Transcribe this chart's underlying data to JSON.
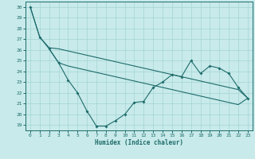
{
  "xlabel": "Humidex (Indice chaleur)",
  "xlim": [
    -0.5,
    23.5
  ],
  "ylim": [
    18.5,
    30.5
  ],
  "xticks": [
    0,
    1,
    2,
    3,
    4,
    5,
    6,
    7,
    8,
    9,
    10,
    11,
    12,
    13,
    14,
    15,
    16,
    17,
    18,
    19,
    20,
    21,
    22,
    23
  ],
  "yticks": [
    19,
    20,
    21,
    22,
    23,
    24,
    25,
    26,
    27,
    28,
    29,
    30
  ],
  "bg_color": "#c8eaea",
  "line_color": "#1e6b6b",
  "grid_color": "#a4d4d4",
  "line1_x": [
    0,
    1,
    2,
    3,
    4,
    5,
    6,
    7,
    8,
    9,
    10,
    11,
    12,
    13,
    14,
    15,
    16,
    17,
    18,
    19,
    20,
    21,
    22,
    23
  ],
  "line1_y": [
    30,
    27.2,
    26.1,
    24.8,
    23.2,
    22.0,
    20.3,
    18.9,
    18.9,
    19.4,
    20.0,
    21.1,
    21.2,
    22.5,
    23.0,
    23.7,
    23.5,
    25.0,
    23.8,
    24.5,
    24.3,
    23.8,
    22.5,
    21.5
  ],
  "line2_x": [
    0,
    1,
    2,
    3,
    4,
    5,
    6,
    7,
    8,
    9,
    10,
    11,
    12,
    13,
    14,
    15,
    16,
    17,
    18,
    19,
    20,
    21,
    22,
    23
  ],
  "line2_y": [
    30,
    27.2,
    26.2,
    26.1,
    25.9,
    25.7,
    25.5,
    25.3,
    25.1,
    24.9,
    24.7,
    24.5,
    24.3,
    24.1,
    23.9,
    23.7,
    23.5,
    23.3,
    23.1,
    22.9,
    22.7,
    22.5,
    22.3,
    21.5
  ],
  "line3_x": [
    2,
    3,
    4,
    5,
    6,
    7,
    8,
    9,
    10,
    11,
    12,
    13,
    14,
    15,
    16,
    17,
    18,
    19,
    20,
    21,
    22,
    23
  ],
  "line3_y": [
    26.1,
    24.8,
    24.5,
    24.3,
    24.1,
    23.9,
    23.7,
    23.5,
    23.3,
    23.1,
    22.9,
    22.7,
    22.5,
    22.3,
    22.1,
    21.9,
    21.7,
    21.5,
    21.3,
    21.1,
    20.9,
    21.5
  ]
}
